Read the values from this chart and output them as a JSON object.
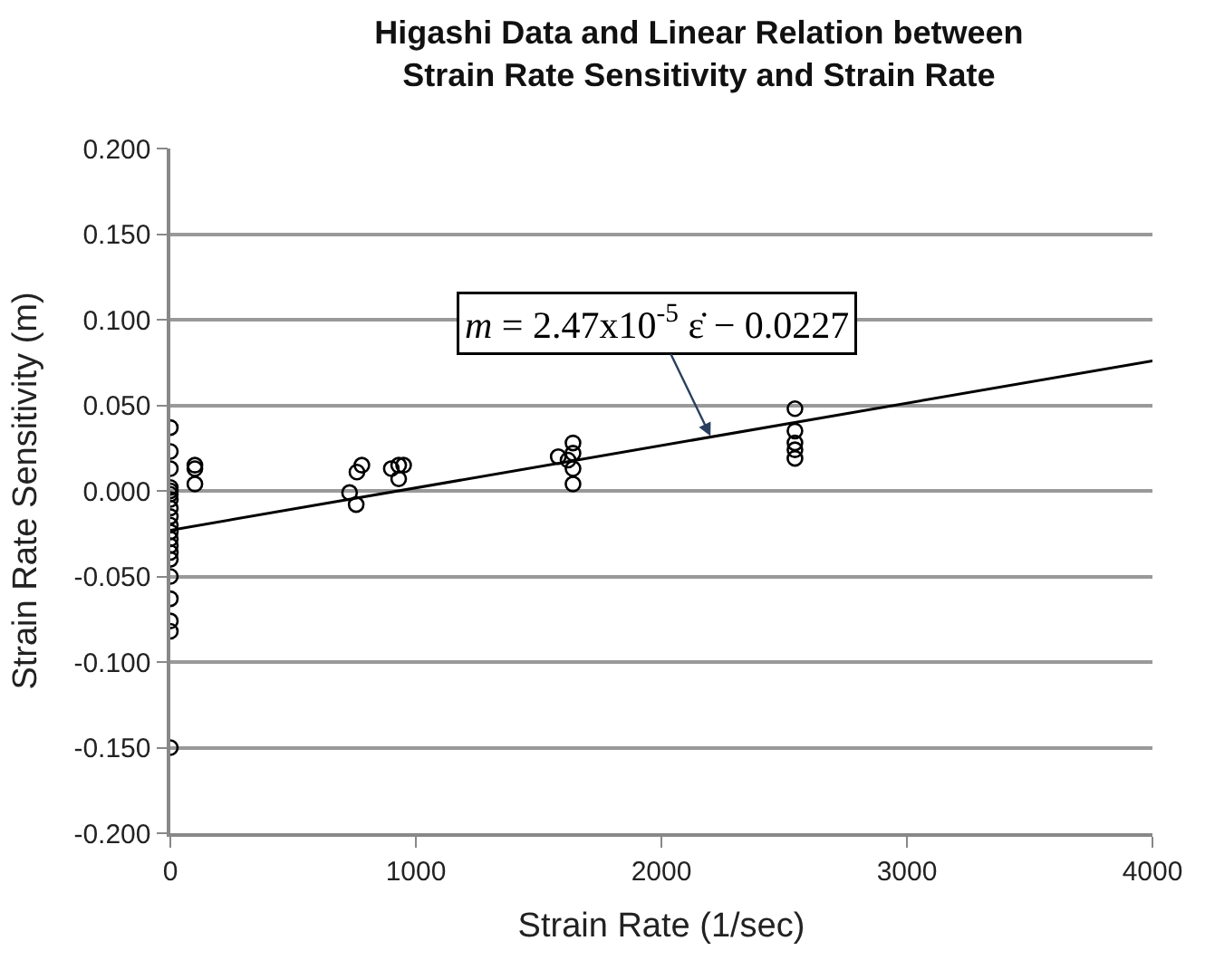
{
  "chart_data": {
    "type": "scatter",
    "title": "Higashi Data and Linear Relation between\nStrain Rate Sensitivity and Strain Rate",
    "xlabel": "Strain Rate (1/sec)",
    "ylabel": "Strain Rate Sensitivity (m)",
    "series": [
      {
        "color": "#000000",
        "marker": "circle",
        "x": [
          0,
          0,
          0,
          0,
          0,
          0,
          0,
          0,
          0,
          0,
          0,
          0,
          0,
          0,
          0,
          0,
          0,
          0,
          0,
          0,
          100,
          100,
          100,
          730,
          757,
          760,
          780,
          900,
          930,
          950,
          930,
          1640,
          1640,
          1580,
          1620,
          1640,
          1640,
          2544,
          2544,
          2544,
          2544,
          2544
        ],
        "values": [
          0.037,
          0.023,
          0.013,
          0.002,
          -0.002,
          -0.005,
          -0.01,
          -0.015,
          -0.02,
          -0.024,
          -0.028,
          -0.032,
          -0.036,
          -0.05,
          -0.063,
          -0.076,
          -0.082,
          -0.15,
          0.0,
          -0.04,
          0.015,
          0.013,
          0.004,
          -0.001,
          -0.008,
          0.011,
          0.015,
          0.013,
          0.015,
          0.015,
          0.007,
          0.028,
          0.022,
          0.02,
          0.018,
          0.013,
          0.004,
          0.048,
          0.035,
          0.028,
          0.024,
          0.019
        ]
      },
      {
        "type": "line",
        "color": "#000000",
        "marker": "none",
        "line_style": "solid",
        "x": [
          0,
          4000
        ],
        "values": [
          -0.023,
          0.076
        ]
      }
    ],
    "annotations": [
      {
        "text": "m = 2.47x10$^{-5}$ ε̇ − 0.0227",
        "x": 2200,
        "y": 0.032
      }
    ],
    "xlim": [
      0,
      4000
    ],
    "xticks": [
      0,
      1000,
      2000,
      3000,
      4000
    ],
    "ylim": [
      -0.2,
      0.2
    ],
    "yticks": [
      {
        "value": -0.2,
        "label": "-0.200"
      },
      {
        "value": -0.15,
        "label": "-0.150"
      },
      {
        "value": -0.1,
        "label": "-0.100"
      },
      {
        "value": -0.05,
        "label": "-0.050"
      },
      {
        "value": 0,
        "label": "0.000"
      },
      {
        "value": 0.05,
        "label": "0.050"
      },
      {
        "value": 0.1,
        "label": "0.100"
      },
      {
        "value": 0.15,
        "label": "0.150"
      },
      {
        "value": 0.2,
        "label": "0.200"
      }
    ],
    "grid": "y"
  }
}
